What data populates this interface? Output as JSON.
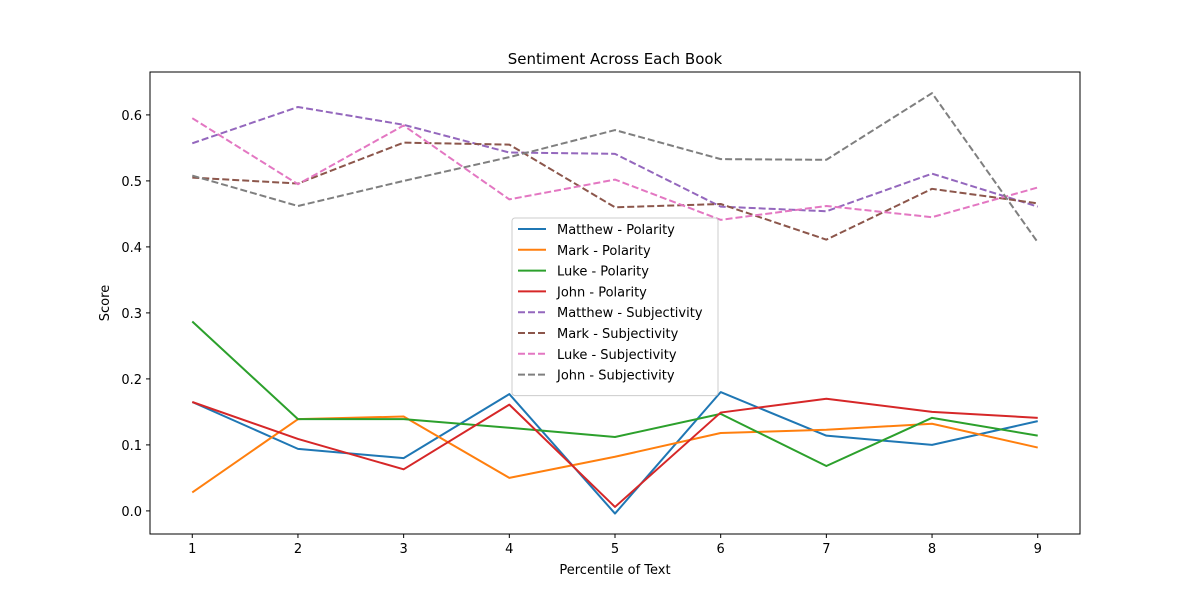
{
  "chart_data": {
    "type": "line",
    "title": "Sentiment Across Each Book",
    "xlabel": "Percentile of Text",
    "ylabel": "Score",
    "x": [
      1,
      2,
      3,
      4,
      5,
      6,
      7,
      8,
      9
    ],
    "xlim": [
      0.6,
      9.4
    ],
    "ylim": [
      -0.035,
      0.665
    ],
    "xticks": [
      "1",
      "2",
      "3",
      "4",
      "5",
      "6",
      "7",
      "8",
      "9"
    ],
    "yticks": [
      "0.0",
      "0.1",
      "0.2",
      "0.3",
      "0.4",
      "0.5",
      "0.6"
    ],
    "grid": false,
    "legend_position": "center",
    "series": [
      {
        "name": "Matthew - Polarity",
        "color": "#1f77b4",
        "dash": "solid",
        "values": [
          0.165,
          0.094,
          0.08,
          0.177,
          -0.004,
          0.18,
          0.114,
          0.1,
          0.136
        ]
      },
      {
        "name": "Mark - Polarity",
        "color": "#ff7f0e",
        "dash": "solid",
        "values": [
          0.028,
          0.139,
          0.143,
          0.05,
          0.082,
          0.118,
          0.123,
          0.132,
          0.096
        ]
      },
      {
        "name": "Luke - Polarity",
        "color": "#2ca02c",
        "dash": "solid",
        "values": [
          0.287,
          0.139,
          0.139,
          0.126,
          0.112,
          0.147,
          0.068,
          0.141,
          0.114
        ]
      },
      {
        "name": "John - Polarity",
        "color": "#d62728",
        "dash": "solid",
        "values": [
          0.165,
          0.109,
          0.063,
          0.161,
          0.006,
          0.149,
          0.17,
          0.15,
          0.141
        ]
      },
      {
        "name": "Matthew - Subjectivity",
        "color": "#9467bd",
        "dash": "dashed",
        "values": [
          0.557,
          0.612,
          0.585,
          0.543,
          0.541,
          0.461,
          0.454,
          0.511,
          0.461
        ]
      },
      {
        "name": "Mark - Subjectivity",
        "color": "#8c564b",
        "dash": "dashed",
        "values": [
          0.505,
          0.496,
          0.558,
          0.555,
          0.46,
          0.465,
          0.411,
          0.488,
          0.466
        ]
      },
      {
        "name": "Luke - Subjectivity",
        "color": "#e377c2",
        "dash": "dashed",
        "values": [
          0.595,
          0.495,
          0.584,
          0.472,
          0.502,
          0.441,
          0.462,
          0.445,
          0.49
        ]
      },
      {
        "name": "John - Subjectivity",
        "color": "#7f7f7f",
        "dash": "dashed",
        "values": [
          0.508,
          0.462,
          0.5,
          0.536,
          0.577,
          0.533,
          0.532,
          0.633,
          0.407
        ]
      }
    ]
  }
}
